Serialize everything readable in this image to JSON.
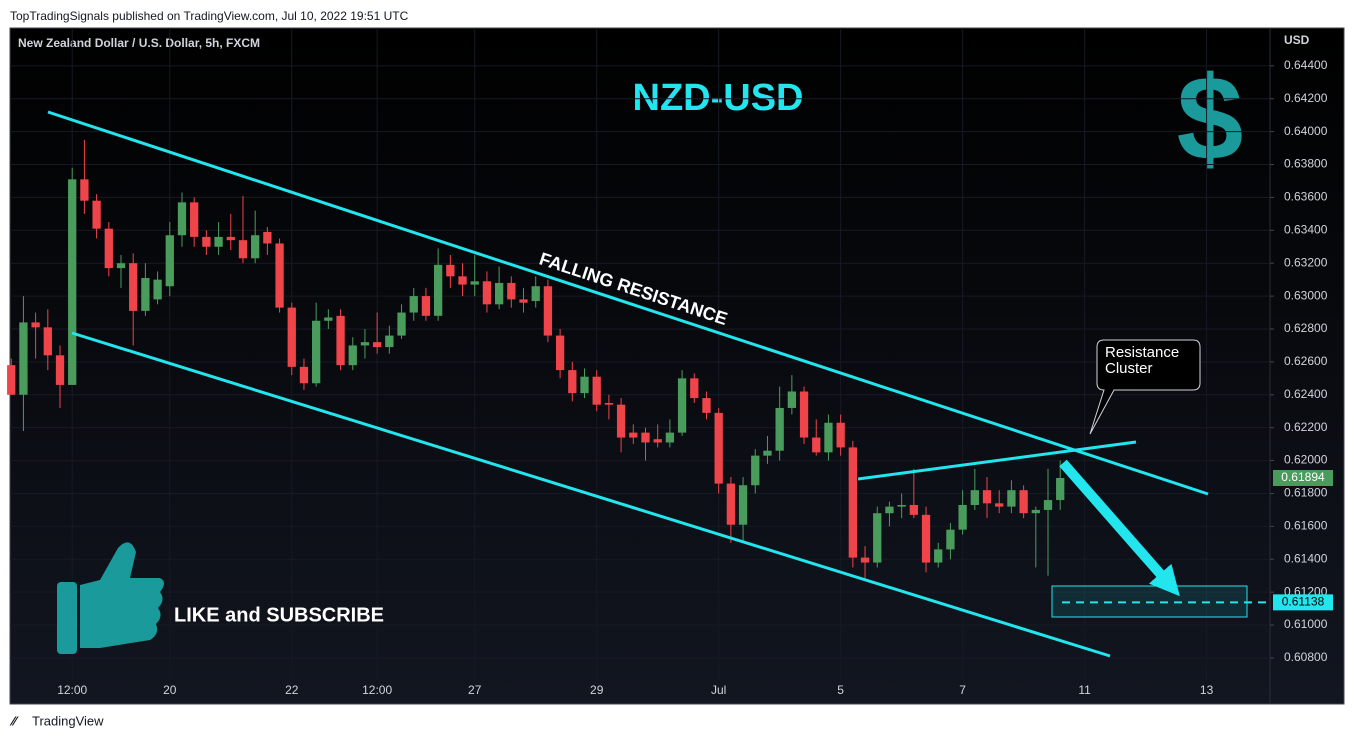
{
  "header": "TopTradingSignals published on TradingView.com, Jul 10, 2022 19:51 UTC",
  "footer": "TradingView",
  "chart_data": {
    "type": "candlestick",
    "title": "NZD-USD",
    "subtitle": "New Zealand Dollar / U.S. Dollar, 5h, FXCM",
    "y_axis_label": "USD",
    "up_color": "#4a9c5d",
    "down_color": "#f0444b",
    "open": [
      0.6258,
      0.624,
      0.6284,
      0.6281,
      0.6264,
      0.6246,
      0.6371,
      0.6358,
      0.6341,
      0.6317,
      0.632,
      0.6291,
      0.6298,
      0.6306,
      0.6337,
      0.6357,
      0.6336,
      0.633,
      0.6336,
      0.6334,
      0.6323,
      0.6339,
      0.6332,
      0.6293,
      0.6257,
      0.6247,
      0.6285,
      0.6288,
      0.6258,
      0.627,
      0.6272,
      0.6269,
      0.6276,
      0.629,
      0.63,
      0.6288,
      0.6319,
      0.6312,
      0.6307,
      0.6309,
      0.6295,
      0.6308,
      0.6298,
      0.6297,
      0.6306,
      0.6276,
      0.6255,
      0.6241,
      0.6251,
      0.6235,
      0.6234,
      0.6217,
      0.6217,
      0.6213,
      0.6211,
      0.6217,
      0.625,
      0.6238,
      0.6229,
      0.6186,
      0.6161,
      0.6185,
      0.6203,
      0.6206,
      0.6232,
      0.6242,
      0.6214,
      0.6205,
      0.6223,
      0.6208,
      0.6141,
      0.6138,
      0.6168,
      0.6172,
      0.6173,
      0.6167,
      0.6138,
      0.6146,
      0.6158,
      0.6173,
      0.6182,
      0.6174,
      0.6172,
      0.6182,
      0.6168,
      0.617,
      0.6176
    ],
    "high": [
      0.6262,
      0.63,
      0.629,
      0.6292,
      0.627,
      0.6378,
      0.6395,
      0.6362,
      0.6345,
      0.6325,
      0.6326,
      0.632,
      0.6315,
      0.6345,
      0.6363,
      0.636,
      0.634,
      0.6345,
      0.635,
      0.6361,
      0.6352,
      0.6342,
      0.6335,
      0.6296,
      0.6262,
      0.6296,
      0.6292,
      0.6292,
      0.6275,
      0.628,
      0.629,
      0.6282,
      0.6295,
      0.6305,
      0.6305,
      0.6329,
      0.6325,
      0.632,
      0.6325,
      0.6315,
      0.6318,
      0.6312,
      0.6305,
      0.6312,
      0.631,
      0.628,
      0.626,
      0.6256,
      0.6255,
      0.624,
      0.6238,
      0.6222,
      0.622,
      0.6222,
      0.6225,
      0.6255,
      0.6253,
      0.6242,
      0.6232,
      0.619,
      0.619,
      0.6207,
      0.6215,
      0.6245,
      0.6252,
      0.6245,
      0.6225,
      0.6228,
      0.6228,
      0.6212,
      0.6148,
      0.6172,
      0.6175,
      0.618,
      0.6195,
      0.6172,
      0.615,
      0.6162,
      0.6182,
      0.6195,
      0.619,
      0.6182,
      0.6188,
      0.6185,
      0.6172,
      0.6195,
      0.62
    ],
    "low": [
      0.624,
      0.6218,
      0.6262,
      0.6255,
      0.6232,
      0.6246,
      0.635,
      0.6335,
      0.6312,
      0.6305,
      0.627,
      0.6288,
      0.6295,
      0.63,
      0.633,
      0.633,
      0.6325,
      0.6325,
      0.6328,
      0.632,
      0.632,
      0.6325,
      0.629,
      0.6252,
      0.6243,
      0.6245,
      0.628,
      0.6255,
      0.6255,
      0.6262,
      0.6265,
      0.6265,
      0.6274,
      0.6285,
      0.6285,
      0.6285,
      0.6305,
      0.63,
      0.63,
      0.629,
      0.6292,
      0.6293,
      0.629,
      0.6293,
      0.6272,
      0.625,
      0.6236,
      0.6238,
      0.623,
      0.6225,
      0.6205,
      0.621,
      0.62,
      0.6208,
      0.6208,
      0.6215,
      0.6235,
      0.6225,
      0.618,
      0.615,
      0.615,
      0.618,
      0.6198,
      0.62,
      0.6228,
      0.621,
      0.6203,
      0.62,
      0.6203,
      0.6135,
      0.6128,
      0.6135,
      0.616,
      0.6165,
      0.6165,
      0.6132,
      0.6135,
      0.614,
      0.6155,
      0.617,
      0.6165,
      0.6168,
      0.6168,
      0.6165,
      0.6135,
      0.613,
      0.617
    ],
    "close": [
      0.624,
      0.6284,
      0.6281,
      0.6264,
      0.6246,
      0.6371,
      0.6358,
      0.6341,
      0.6317,
      0.632,
      0.6291,
      0.6311,
      0.631,
      0.6337,
      0.6357,
      0.6336,
      0.633,
      0.6336,
      0.6334,
      0.6323,
      0.6337,
      0.6332,
      0.6293,
      0.6257,
      0.6247,
      0.6285,
      0.6287,
      0.6258,
      0.627,
      0.6272,
      0.6269,
      0.6276,
      0.629,
      0.63,
      0.6288,
      0.6319,
      0.6312,
      0.6307,
      0.6309,
      0.6295,
      0.6308,
      0.6298,
      0.6296,
      0.6306,
      0.6276,
      0.6255,
      0.6241,
      0.6251,
      0.6234,
      0.6234,
      0.6214,
      0.6214,
      0.6211,
      0.6211,
      0.6217,
      0.625,
      0.6238,
      0.6229,
      0.6186,
      0.6161,
      0.6185,
      0.6203,
      0.6206,
      0.6232,
      0.6242,
      0.6214,
      0.6205,
      0.6223,
      0.6208,
      0.6141,
      0.6138,
      0.6168,
      0.6172,
      0.6173,
      0.6167,
      0.6138,
      0.6146,
      0.6158,
      0.6173,
      0.6182,
      0.6174,
      0.6172,
      0.6182,
      0.6168,
      0.617,
      0.6176,
      0.61894
    ],
    "xlim": [
      -0.1,
      103.2
    ],
    "xticks": [
      {
        "value": 5,
        "label": "12:00"
      },
      {
        "value": 13,
        "label": "20"
      },
      {
        "value": 23,
        "label": "22"
      },
      {
        "value": 30,
        "label": "12:00"
      },
      {
        "value": 38,
        "label": "27"
      },
      {
        "value": 48,
        "label": "29"
      },
      {
        "value": 58,
        "label": "Jul"
      },
      {
        "value": 68,
        "label": "5"
      },
      {
        "value": 78,
        "label": "7"
      },
      {
        "value": 88,
        "label": "11"
      },
      {
        "value": 98,
        "label": "13"
      }
    ],
    "ylim": [
      0.6052,
      0.6463
    ],
    "yticks": [
      {
        "value": 0.644,
        "label": "0.64400"
      },
      {
        "value": 0.642,
        "label": "0.64200"
      },
      {
        "value": 0.64,
        "label": "0.64000"
      },
      {
        "value": 0.638,
        "label": "0.63800"
      },
      {
        "value": 0.636,
        "label": "0.63600"
      },
      {
        "value": 0.634,
        "label": "0.63400"
      },
      {
        "value": 0.632,
        "label": "0.63200"
      },
      {
        "value": 0.63,
        "label": "0.63000"
      },
      {
        "value": 0.628,
        "label": "0.62800"
      },
      {
        "value": 0.626,
        "label": "0.62600"
      },
      {
        "value": 0.624,
        "label": "0.62400"
      },
      {
        "value": 0.622,
        "label": "0.62200"
      },
      {
        "value": 0.62,
        "label": "0.62000"
      },
      {
        "value": 0.618,
        "label": "0.61800"
      },
      {
        "value": 0.616,
        "label": "0.61600"
      },
      {
        "value": 0.614,
        "label": "0.61400"
      },
      {
        "value": 0.612,
        "label": "0.61200"
      },
      {
        "value": 0.61,
        "label": "0.61000"
      },
      {
        "value": 0.608,
        "label": "0.60800"
      }
    ],
    "last_price": 0.61894,
    "target_price": 0.61138,
    "annotations": {
      "falling": "FALLING RESISTANCE",
      "cluster": "Resistance Cluster",
      "subscribe": "LIKE and SUBSCRIBE",
      "icon": "$"
    }
  }
}
